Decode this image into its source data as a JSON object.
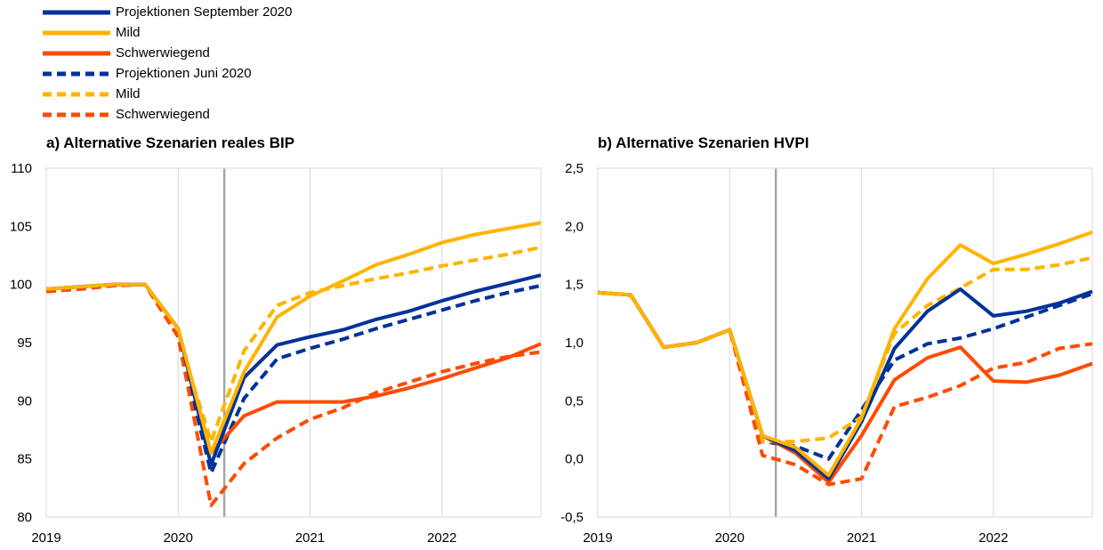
{
  "legend": [
    {
      "label": "Projektionen September 2020",
      "color": "#003299",
      "dashed": false
    },
    {
      "label": "Mild",
      "color": "#FFB400",
      "dashed": false
    },
    {
      "label": "Schwerwiegend",
      "color": "#FF4B00",
      "dashed": false
    },
    {
      "label": "Projektionen Juni 2020",
      "color": "#003299",
      "dashed": true
    },
    {
      "label": "Mild",
      "color": "#FFB400",
      "dashed": true
    },
    {
      "label": "Schwerwiegend",
      "color": "#FF4B00",
      "dashed": true
    }
  ],
  "chart_data": [
    {
      "type": "line",
      "title": "a) Alternative Szenarien reales BIP",
      "xlabel": "",
      "ylabel": "",
      "x": [
        "2019Q1",
        "2019Q2",
        "2019Q3",
        "2019Q4",
        "2020Q1",
        "2020Q2",
        "2020Q3",
        "2020Q4",
        "2021Q1",
        "2021Q2",
        "2021Q3",
        "2021Q4",
        "2022Q1",
        "2022Q2",
        "2022Q3",
        "2022Q4"
      ],
      "x_tick_labels": [
        "2019",
        "2020",
        "2021",
        "2022"
      ],
      "y_tick_labels": [
        "80",
        "85",
        "90",
        "95",
        "100",
        "105",
        "110"
      ],
      "ylim": [
        80,
        110
      ],
      "vertical_marker": "2020Q2-Q3",
      "grid": true,
      "series": [
        {
          "name": "Projektionen September 2020",
          "color": "#003299",
          "dashed": false,
          "values": [
            99.6,
            99.8,
            100.0,
            100.0,
            96.2,
            84.5,
            92.0,
            94.8,
            95.5,
            96.1,
            97.0,
            97.7,
            98.6,
            99.4,
            100.1,
            100.8
          ]
        },
        {
          "name": "Mild",
          "color": "#FFB400",
          "dashed": false,
          "values": [
            99.6,
            99.8,
            100.0,
            100.0,
            96.2,
            85.5,
            92.5,
            97.2,
            99.0,
            100.3,
            101.7,
            102.6,
            103.6,
            104.3,
            104.8,
            105.3
          ]
        },
        {
          "name": "Schwerwiegend",
          "color": "#FF4B00",
          "dashed": false,
          "values": [
            99.6,
            99.8,
            100.0,
            100.0,
            96.2,
            85.5,
            88.7,
            89.9,
            89.9,
            89.9,
            90.4,
            91.1,
            91.9,
            92.8,
            93.7,
            94.9
          ]
        },
        {
          "name": "Projektionen Juni 2020",
          "color": "#003299",
          "dashed": true,
          "values": [
            99.4,
            99.6,
            99.9,
            100.0,
            95.5,
            83.8,
            90.2,
            93.6,
            94.5,
            95.3,
            96.2,
            97.0,
            97.8,
            98.6,
            99.3,
            99.9
          ]
        },
        {
          "name": "Mild",
          "color": "#FFB400",
          "dashed": true,
          "values": [
            99.4,
            99.6,
            99.9,
            100.0,
            95.5,
            86.5,
            94.3,
            98.2,
            99.3,
            99.9,
            100.5,
            101.0,
            101.6,
            102.1,
            102.6,
            103.2
          ]
        },
        {
          "name": "Schwerwiegend",
          "color": "#FF4B00",
          "dashed": true,
          "values": [
            99.4,
            99.6,
            99.9,
            100.0,
            95.5,
            81.0,
            84.6,
            86.8,
            88.4,
            89.4,
            90.7,
            91.6,
            92.5,
            93.2,
            93.8,
            94.2
          ]
        }
      ]
    },
    {
      "type": "line",
      "title": "b) Alternative Szenarien HVPI",
      "xlabel": "",
      "ylabel": "",
      "x": [
        "2019Q1",
        "2019Q2",
        "2019Q3",
        "2019Q4",
        "2020Q1",
        "2020Q2",
        "2020Q3",
        "2020Q4",
        "2021Q1",
        "2021Q2",
        "2021Q3",
        "2021Q4",
        "2022Q1",
        "2022Q2",
        "2022Q3",
        "2022Q4"
      ],
      "x_tick_labels": [
        "2019",
        "2020",
        "2021",
        "2022"
      ],
      "y_tick_labels": [
        "-0,5",
        "0,0",
        "0,5",
        "1,0",
        "1,5",
        "2,0",
        "2,5"
      ],
      "ylim": [
        -0.5,
        2.5
      ],
      "vertical_marker": "2020Q2-Q3",
      "grid": true,
      "series": [
        {
          "name": "Projektionen September 2020",
          "color": "#003299",
          "dashed": false,
          "values": [
            1.43,
            1.41,
            0.96,
            1.0,
            1.11,
            0.2,
            0.07,
            -0.17,
            0.32,
            0.95,
            1.27,
            1.46,
            1.23,
            1.27,
            1.34,
            1.44
          ]
        },
        {
          "name": "Mild",
          "color": "#FFB400",
          "dashed": false,
          "values": [
            1.43,
            1.41,
            0.96,
            1.0,
            1.11,
            0.2,
            0.1,
            -0.14,
            0.35,
            1.12,
            1.55,
            1.84,
            1.68,
            1.76,
            1.85,
            1.95
          ]
        },
        {
          "name": "Schwerwiegend",
          "color": "#FF4B00",
          "dashed": false,
          "values": [
            1.43,
            1.41,
            0.96,
            1.0,
            1.11,
            0.2,
            0.05,
            -0.2,
            0.2,
            0.68,
            0.87,
            0.96,
            0.67,
            0.66,
            0.72,
            0.82
          ]
        },
        {
          "name": "Projektionen Juni 2020",
          "color": "#003299",
          "dashed": true,
          "values": [
            1.43,
            1.41,
            0.96,
            1.0,
            1.11,
            0.15,
            0.11,
            0.0,
            0.42,
            0.85,
            0.99,
            1.04,
            1.12,
            1.22,
            1.32,
            1.42
          ]
        },
        {
          "name": "Mild",
          "color": "#FFB400",
          "dashed": true,
          "values": [
            1.43,
            1.41,
            0.96,
            1.0,
            1.11,
            0.15,
            0.15,
            0.18,
            0.36,
            1.08,
            1.32,
            1.47,
            1.63,
            1.63,
            1.67,
            1.73
          ]
        },
        {
          "name": "Schwerwiegend",
          "color": "#FF4B00",
          "dashed": true,
          "values": [
            1.43,
            1.41,
            0.96,
            1.0,
            1.11,
            0.03,
            -0.05,
            -0.22,
            -0.17,
            0.45,
            0.53,
            0.63,
            0.78,
            0.83,
            0.95,
            0.99
          ]
        }
      ]
    }
  ]
}
